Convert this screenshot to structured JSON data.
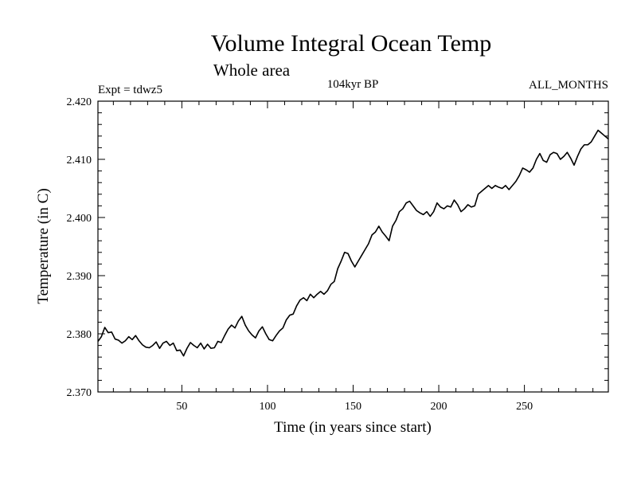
{
  "chart_data": {
    "type": "line",
    "title": "Volume Integral Ocean Temp",
    "subtitle": "Whole area",
    "annotations": {
      "left": "Expt = tdwz5",
      "center": "104kyr BP",
      "right": "ALL_MONTHS"
    },
    "xlabel": "Time (in years since start)",
    "ylabel": "Temperature (in C)",
    "xlim": [
      1,
      299
    ],
    "ylim": [
      2.37,
      2.42
    ],
    "x_ticks": [
      50,
      100,
      150,
      200,
      250
    ],
    "x_tick_labels": [
      "50",
      "100",
      "150",
      "200",
      "250"
    ],
    "y_ticks": [
      2.37,
      2.38,
      2.39,
      2.4,
      2.41,
      2.42
    ],
    "y_tick_labels": [
      "2.370",
      "2.380",
      "2.390",
      "2.400",
      "2.410",
      "2.420"
    ],
    "grid": false,
    "series": [
      {
        "color": "#000000",
        "x": [
          1,
          3,
          5,
          7,
          9,
          11,
          13,
          15,
          17,
          19,
          21,
          23,
          25,
          27,
          29,
          31,
          33,
          35,
          37,
          39,
          41,
          43,
          45,
          47,
          49,
          51,
          53,
          55,
          57,
          59,
          61,
          63,
          65,
          67,
          69,
          71,
          73,
          75,
          77,
          79,
          81,
          83,
          85,
          87,
          89,
          91,
          93,
          95,
          97,
          99,
          101,
          103,
          105,
          107,
          109,
          111,
          113,
          115,
          117,
          119,
          121,
          123,
          125,
          127,
          129,
          131,
          133,
          135,
          137,
          139,
          141,
          143,
          145,
          147,
          149,
          151,
          153,
          155,
          157,
          159,
          161,
          163,
          165,
          167,
          169,
          171,
          173,
          175,
          177,
          179,
          181,
          183,
          185,
          187,
          189,
          191,
          193,
          195,
          197,
          199,
          201,
          203,
          205,
          207,
          209,
          211,
          213,
          215,
          217,
          219,
          221,
          223,
          225,
          227,
          229,
          231,
          233,
          235,
          237,
          239,
          241,
          243,
          245,
          247,
          249,
          251,
          253,
          255,
          257,
          259,
          261,
          263,
          265,
          267,
          269,
          271,
          273,
          275,
          277,
          279,
          281,
          283,
          285,
          287,
          289,
          291,
          293,
          295,
          297,
          299
        ],
        "y": [
          2.3787,
          2.3795,
          2.3811,
          2.3802,
          2.3803,
          2.3791,
          2.3789,
          2.3784,
          2.3788,
          2.3795,
          2.379,
          2.3797,
          2.3788,
          2.3781,
          2.3777,
          2.3776,
          2.378,
          2.3786,
          2.3775,
          2.3784,
          2.3787,
          2.378,
          2.3784,
          2.3771,
          2.3772,
          2.3762,
          2.3775,
          2.3785,
          2.378,
          2.3776,
          2.3784,
          2.3774,
          2.3782,
          2.3775,
          2.3776,
          2.3787,
          2.3785,
          2.3797,
          2.3808,
          2.3815,
          2.381,
          2.3822,
          2.383,
          2.3815,
          2.3805,
          2.3798,
          2.3793,
          2.3805,
          2.3812,
          2.38,
          2.379,
          2.3788,
          2.3797,
          2.3805,
          2.381,
          2.3824,
          2.3832,
          2.3834,
          2.3848,
          2.3858,
          2.3862,
          2.3857,
          2.3868,
          2.3862,
          2.3868,
          2.3873,
          2.3868,
          2.3874,
          2.3885,
          2.389,
          2.3912,
          2.3925,
          2.394,
          2.3938,
          2.3925,
          2.3915,
          2.3925,
          2.3935,
          2.3945,
          2.3955,
          2.397,
          2.3975,
          2.3985,
          2.3975,
          2.3968,
          2.396,
          2.3985,
          2.3995,
          2.401,
          2.4015,
          2.4025,
          2.4028,
          2.402,
          2.4012,
          2.4008,
          2.4005,
          2.401,
          2.4002,
          2.401,
          2.4025,
          2.4018,
          2.4015,
          2.402,
          2.4018,
          2.403,
          2.4022,
          2.401,
          2.4015,
          2.4022,
          2.4018,
          2.402,
          2.404,
          2.4045,
          2.405,
          2.4055,
          2.405,
          2.4055,
          2.4052,
          2.405,
          2.4055,
          2.4048,
          2.4055,
          2.4062,
          2.4072,
          2.4085,
          2.4082,
          2.4078,
          2.4085,
          2.41,
          2.411,
          2.4098,
          2.4095,
          2.4108,
          2.4112,
          2.411,
          2.41,
          2.4105,
          2.4112,
          2.4102,
          2.409,
          2.4105,
          2.4118,
          2.4125,
          2.4125,
          2.413,
          2.414,
          2.415,
          2.4145,
          2.414,
          2.4135
        ]
      }
    ]
  }
}
